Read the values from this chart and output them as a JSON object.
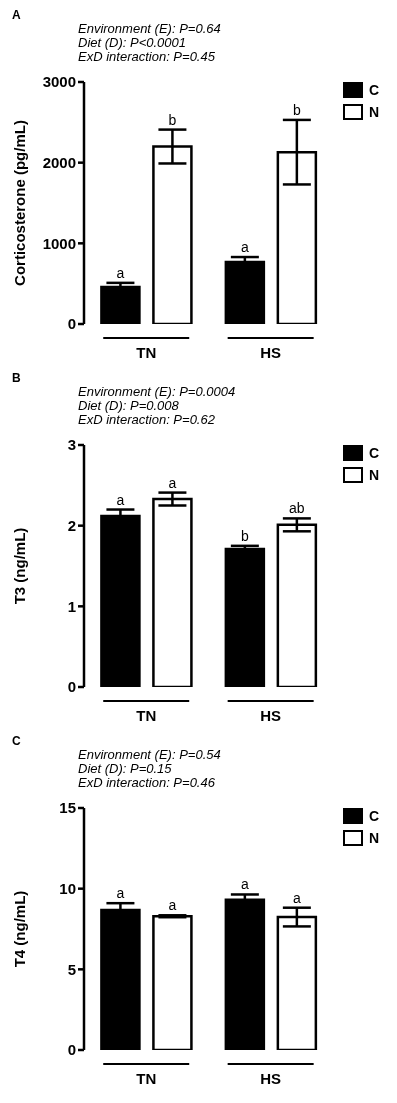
{
  "chart_data": [
    {
      "type": "bar",
      "title": "A",
      "annotations": [
        "Environment (E): P=0.64",
        "Diet (D): P<0.0001",
        "ExD interaction: P=0.45"
      ],
      "ylabel": "Corticosterone (pg/mL)",
      "categories": [
        "TN",
        "HS"
      ],
      "ylim": [
        0,
        3000
      ],
      "yticks": [
        0,
        1000,
        2000,
        3000
      ],
      "grid": false,
      "legend": "top right",
      "series": [
        {
          "name": "C",
          "color": "#000000",
          "values": [
            460,
            770
          ],
          "errors": [
            50,
            60
          ],
          "value_labels": [
            "a",
            "a"
          ]
        },
        {
          "name": "N",
          "color": "#ffffff",
          "values": [
            2200,
            2130
          ],
          "errors": [
            210,
            400
          ],
          "value_labels": [
            "b",
            "b"
          ]
        }
      ]
    },
    {
      "type": "bar",
      "title": "B",
      "annotations": [
        "Environment (E): P=0.0004",
        "Diet (D): P=0.008",
        "ExD interaction: P=0.62"
      ],
      "ylabel": "T3 (ng/mL)",
      "categories": [
        "TN",
        "HS"
      ],
      "ylim": [
        0,
        3
      ],
      "yticks": [
        0,
        1,
        2,
        3
      ],
      "grid": false,
      "legend": "top right",
      "series": [
        {
          "name": "C",
          "color": "#000000",
          "values": [
            2.12,
            1.71
          ],
          "errors": [
            0.08,
            0.04
          ],
          "value_labels": [
            "a",
            "b"
          ]
        },
        {
          "name": "N",
          "color": "#ffffff",
          "values": [
            2.33,
            2.01
          ],
          "errors": [
            0.08,
            0.08
          ],
          "value_labels": [
            "a",
            "ab"
          ]
        }
      ]
    },
    {
      "type": "bar",
      "title": "C",
      "annotations": [
        "Environment (E): P=0.54",
        "Diet (D): P=0.15",
        "ExD interaction: P=0.46"
      ],
      "ylabel": "T4 (ng/mL)",
      "categories": [
        "TN",
        "HS"
      ],
      "ylim": [
        0,
        15
      ],
      "yticks": [
        0,
        5,
        10,
        15
      ],
      "grid": false,
      "legend": "top right",
      "series": [
        {
          "name": "C",
          "color": "#000000",
          "values": [
            8.67,
            9.31
          ],
          "errors": [
            0.43,
            0.33
          ],
          "value_labels": [
            "a",
            "a"
          ]
        },
        {
          "name": "N",
          "color": "#ffffff",
          "values": [
            8.29,
            8.24
          ],
          "errors": [
            0.06,
            0.58
          ],
          "value_labels": [
            "a",
            "a"
          ]
        }
      ]
    }
  ]
}
